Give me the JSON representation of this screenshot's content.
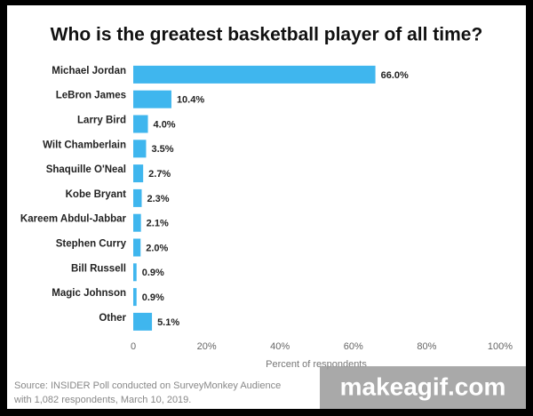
{
  "chart_data": {
    "type": "bar",
    "orientation": "horizontal",
    "title": "Who is the greatest basketball player of all time?",
    "categories": [
      "Michael Jordan",
      "LeBron James",
      "Larry Bird",
      "Wilt Chamberlain",
      "Shaquille O'Neal",
      "Kobe Bryant",
      "Kareem Abdul-Jabbar",
      "Stephen Curry",
      "Bill Russell",
      "Magic Johnson",
      "Other"
    ],
    "values": [
      66.0,
      10.4,
      4.0,
      3.5,
      2.7,
      2.3,
      2.1,
      2.0,
      0.9,
      0.9,
      5.1
    ],
    "value_labels": [
      "66.0%",
      "10.4%",
      "4.0%",
      "3.5%",
      "2.7%",
      "2.3%",
      "2.1%",
      "2.0%",
      "0.9%",
      "0.9%",
      "5.1%"
    ],
    "color": "#3fb6ee",
    "xlim": [
      0,
      100
    ],
    "xticks": [
      0,
      {
        "value": 20,
        "label": "20%"
      },
      {
        "value": 40,
        "label": "40%"
      },
      {
        "value": 60,
        "label": "60%"
      },
      {
        "value": 80,
        "label": "80%"
      },
      {
        "value": 100,
        "label": "100%"
      }
    ],
    "xlabel": "Percent of respondents",
    "source": [
      "Source: INSIDER Poll conducted on SurveyMonkey Audience",
      "with 1,082 respondents, March 10, 2019."
    ],
    "watermark": "makeagif.com"
  }
}
